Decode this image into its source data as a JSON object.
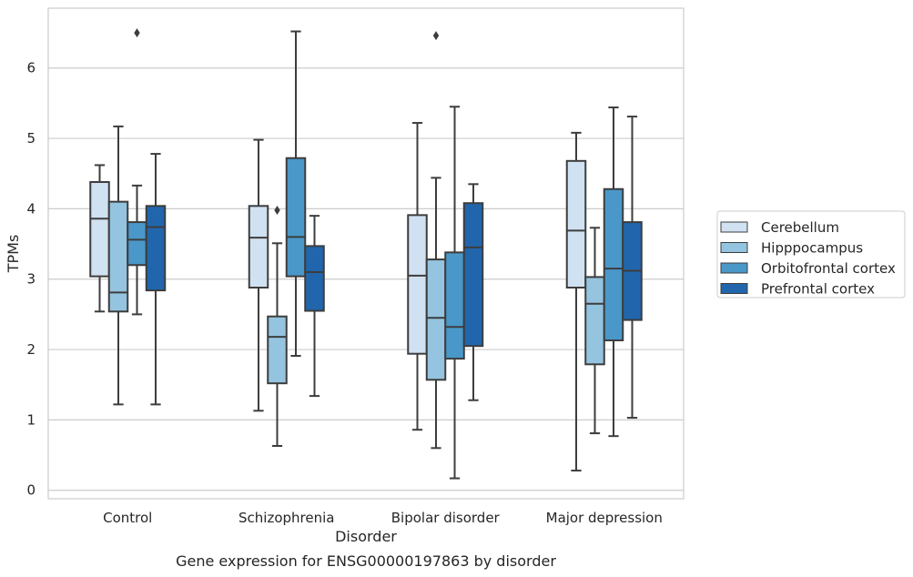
{
  "caption": "Gene expression for ENSG00000197863 by disorder",
  "chart_data": {
    "type": "box",
    "xlabel": "Disorder",
    "ylabel": "TPMs",
    "ylim": [
      -0.12,
      6.85
    ],
    "yticks": [
      "0",
      "1",
      "2",
      "3",
      "4",
      "5",
      "6"
    ],
    "grid": "horizontal",
    "legend_position": "right",
    "categories": [
      "Control",
      "Schizophrenia",
      "Bipolar disorder",
      "Major depression"
    ],
    "series": [
      {
        "name": "Cerebellum",
        "color": "#d0e1f2",
        "boxes": [
          {
            "whisker_low": 2.54,
            "q1": 3.04,
            "median": 3.86,
            "q3": 4.38,
            "whisker_high": 4.62,
            "outliers": []
          },
          {
            "whisker_low": 1.13,
            "q1": 2.88,
            "median": 3.59,
            "q3": 4.04,
            "whisker_high": 4.98,
            "outliers": []
          },
          {
            "whisker_low": 0.86,
            "q1": 1.94,
            "median": 3.05,
            "q3": 3.91,
            "whisker_high": 5.22,
            "outliers": []
          },
          {
            "whisker_low": 0.28,
            "q1": 2.88,
            "median": 3.69,
            "q3": 4.68,
            "whisker_high": 5.08,
            "outliers": []
          }
        ]
      },
      {
        "name": "Hipppocampus",
        "color": "#94c4df",
        "boxes": [
          {
            "whisker_low": 1.22,
            "q1": 2.54,
            "median": 2.81,
            "q3": 4.1,
            "whisker_high": 5.17,
            "outliers": []
          },
          {
            "whisker_low": 0.63,
            "q1": 1.52,
            "median": 2.18,
            "q3": 2.47,
            "whisker_high": 3.51,
            "outliers": [
              3.98
            ]
          },
          {
            "whisker_low": 0.6,
            "q1": 1.57,
            "median": 2.45,
            "q3": 3.28,
            "whisker_high": 4.44,
            "outliers": [
              6.46
            ]
          },
          {
            "whisker_low": 0.81,
            "q1": 1.79,
            "median": 2.65,
            "q3": 3.03,
            "whisker_high": 3.73,
            "outliers": []
          }
        ]
      },
      {
        "name": "Orbitofrontal cortex",
        "color": "#4a98c9",
        "boxes": [
          {
            "whisker_low": 2.5,
            "q1": 3.2,
            "median": 3.56,
            "q3": 3.81,
            "whisker_high": 4.33,
            "outliers": [
              6.5
            ]
          },
          {
            "whisker_low": 1.91,
            "q1": 3.04,
            "median": 3.6,
            "q3": 4.72,
            "whisker_high": 6.52,
            "outliers": []
          },
          {
            "whisker_low": 0.17,
            "q1": 1.87,
            "median": 2.32,
            "q3": 3.38,
            "whisker_high": 5.45,
            "outliers": []
          },
          {
            "whisker_low": 0.77,
            "q1": 2.13,
            "median": 3.15,
            "q3": 4.28,
            "whisker_high": 5.44,
            "outliers": []
          }
        ]
      },
      {
        "name": "Prefrontal cortex",
        "color": "#2166ac",
        "boxes": [
          {
            "whisker_low": 1.22,
            "q1": 2.84,
            "median": 3.74,
            "q3": 4.04,
            "whisker_high": 4.78,
            "outliers": []
          },
          {
            "whisker_low": 1.34,
            "q1": 2.55,
            "median": 3.1,
            "q3": 3.47,
            "whisker_high": 3.9,
            "outliers": []
          },
          {
            "whisker_low": 1.28,
            "q1": 2.05,
            "median": 3.45,
            "q3": 4.08,
            "whisker_high": 4.35,
            "outliers": []
          },
          {
            "whisker_low": 1.03,
            "q1": 2.42,
            "median": 3.12,
            "q3": 3.81,
            "whisker_high": 5.31,
            "outliers": []
          }
        ]
      }
    ]
  }
}
